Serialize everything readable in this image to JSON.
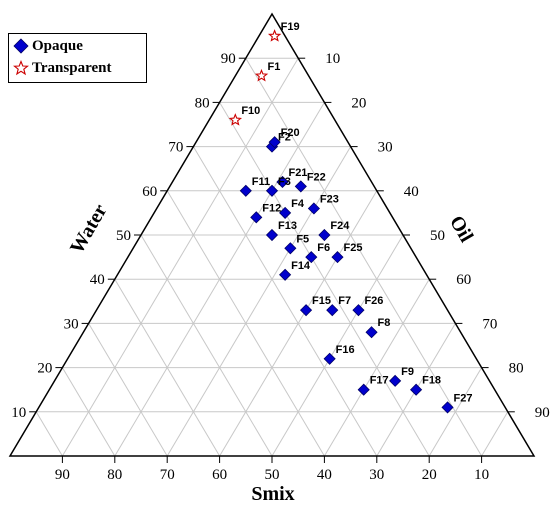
{
  "chart_data": {
    "type": "scatter",
    "subtype": "ternary",
    "axes": {
      "water": "Water",
      "oil": "Oil",
      "smix": "Smix"
    },
    "ticks": [
      10,
      20,
      30,
      40,
      50,
      60,
      70,
      80,
      90
    ],
    "legend": {
      "placement": "top-left",
      "entries": [
        {
          "name": "Opaque",
          "marker": "diamond",
          "color": "#0000CC"
        },
        {
          "name": "Transparent",
          "marker": "star",
          "color": "#CC0000"
        }
      ]
    },
    "grid": true,
    "series": [
      {
        "name": "Opaque",
        "points": [
          {
            "label": "F2",
            "water": 70,
            "oil": 15,
            "smix": 15
          },
          {
            "label": "F20",
            "water": 71,
            "oil": 15,
            "smix": 14
          },
          {
            "label": "F11",
            "water": 60,
            "oil": 15,
            "smix": 25
          },
          {
            "label": "F3",
            "water": 60,
            "oil": 20,
            "smix": 20
          },
          {
            "label": "F21",
            "water": 62,
            "oil": 21,
            "smix": 17
          },
          {
            "label": "F22",
            "water": 61,
            "oil": 25,
            "smix": 14
          },
          {
            "label": "F12",
            "water": 54,
            "oil": 20,
            "smix": 26
          },
          {
            "label": "F4",
            "water": 55,
            "oil": 25,
            "smix": 20
          },
          {
            "label": "F23",
            "water": 56,
            "oil": 30,
            "smix": 14
          },
          {
            "label": "F13",
            "water": 50,
            "oil": 25,
            "smix": 25
          },
          {
            "label": "F24",
            "water": 50,
            "oil": 35,
            "smix": 15
          },
          {
            "label": "F5",
            "water": 47,
            "oil": 30,
            "smix": 23
          },
          {
            "label": "F6",
            "water": 45,
            "oil": 35,
            "smix": 20
          },
          {
            "label": "F25",
            "water": 45,
            "oil": 40,
            "smix": 15
          },
          {
            "label": "F14",
            "water": 41,
            "oil": 32,
            "smix": 27
          },
          {
            "label": "F15",
            "water": 33,
            "oil": 40,
            "smix": 27
          },
          {
            "label": "F7",
            "water": 33,
            "oil": 45,
            "smix": 22
          },
          {
            "label": "F26",
            "water": 33,
            "oil": 50,
            "smix": 17
          },
          {
            "label": "F8",
            "water": 28,
            "oil": 55,
            "smix": 17
          },
          {
            "label": "F16",
            "water": 22,
            "oil": 50,
            "smix": 28
          },
          {
            "label": "F17",
            "water": 15,
            "oil": 60,
            "smix": 25
          },
          {
            "label": "F9",
            "water": 17,
            "oil": 65,
            "smix": 18
          },
          {
            "label": "F18",
            "water": 15,
            "oil": 70,
            "smix": 15
          },
          {
            "label": "F27",
            "water": 11,
            "oil": 78,
            "smix": 11
          }
        ]
      },
      {
        "name": "Transparent",
        "points": [
          {
            "label": "F19",
            "water": 95,
            "oil": 3,
            "smix": 2
          },
          {
            "label": "F1",
            "water": 86,
            "oil": 5,
            "smix": 9
          },
          {
            "label": "F10",
            "water": 76,
            "oil": 5,
            "smix": 19
          }
        ]
      }
    ]
  }
}
